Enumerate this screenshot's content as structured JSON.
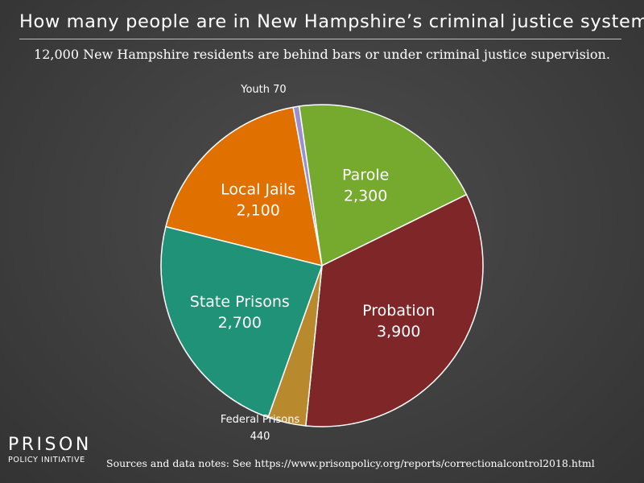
{
  "chart_data": {
    "type": "pie",
    "title": "How many people are in New Hampshire’s criminal justice system?",
    "subtitle": "12,000 New Hampshire residents are behind bars or under criminal justice supervision.",
    "slices": [
      {
        "label": "Local Jails",
        "value_label": "2,100",
        "value": 2100,
        "color": "#e07000"
      },
      {
        "label": "Youth",
        "value_label": "70",
        "value": 70,
        "color": "#9c8fd0"
      },
      {
        "label": "Parole",
        "value_label": "2,300",
        "value": 2300,
        "color": "#76aa2e"
      },
      {
        "label": "Probation",
        "value_label": "3,900",
        "value": 3900,
        "color": "#7f2628"
      },
      {
        "label": "Federal Prisons",
        "value_label": "440",
        "value": 440,
        "color": "#b9892d"
      },
      {
        "label": "State Prisons",
        "value_label": "2,700",
        "value": 2700,
        "color": "#1f9278"
      }
    ]
  },
  "logo": {
    "main": "PRISON",
    "sub": "POLICY INITIATIVE"
  },
  "source": "Sources and data notes: See https://www.prisonpolicy.org/reports/correctionalcontrol2018.html"
}
